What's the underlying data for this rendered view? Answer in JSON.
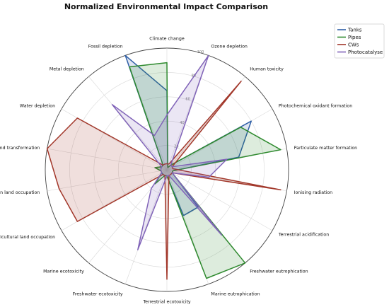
{
  "chart_data": {
    "type": "radar",
    "title": "Normalized Environmental Impact Comparison",
    "categories": [
      "Climate change",
      "Ozone depletion",
      "Human toxicity",
      "Photochemical oxidant formation",
      "Particulate matter formation",
      "Ionising radiation",
      "Terrestrial acidification",
      "Freshwater eutrophication",
      "Marine eutrophication",
      "Terrestrial ecotoxicity",
      "Freshwater ecotoxicity",
      "Marine ecotoxicity",
      "Agricultural land occupation",
      "Urban land occupation",
      "Natural land transformation",
      "Water depletion",
      "Metal depletion",
      "Fossil depletion"
    ],
    "rlim": [
      0,
      100
    ],
    "rticks": [
      20,
      40,
      60,
      80,
      100
    ],
    "rtick_labels": [
      "20",
      "40",
      "60",
      "80",
      "100"
    ],
    "grid": true,
    "legend_position": "top-right",
    "series": [
      {
        "name": "Tanks",
        "color": "#2f5fa7",
        "values": [
          65,
          2,
          5,
          80,
          60,
          5,
          5,
          40,
          40,
          5,
          5,
          5,
          5,
          5,
          10,
          5,
          5,
          100
        ]
      },
      {
        "name": "Pipes",
        "color": "#2e8a2e",
        "values": [
          88,
          2,
          5,
          70,
          95,
          5,
          5,
          100,
          95,
          5,
          5,
          15,
          5,
          5,
          10,
          5,
          5,
          90
        ]
      },
      {
        "name": "CWs",
        "color": "#a2372a",
        "values": [
          5,
          5,
          95,
          5,
          5,
          95,
          5,
          5,
          5,
          90,
          5,
          5,
          85,
          90,
          100,
          85,
          5,
          5
        ]
      },
      {
        "name": "Photocatalyse",
        "color": "#8063b8",
        "values": [
          45,
          100,
          5,
          5,
          50,
          35,
          5,
          70,
          5,
          5,
          70,
          20,
          5,
          5,
          5,
          5,
          70,
          30
        ]
      }
    ]
  }
}
